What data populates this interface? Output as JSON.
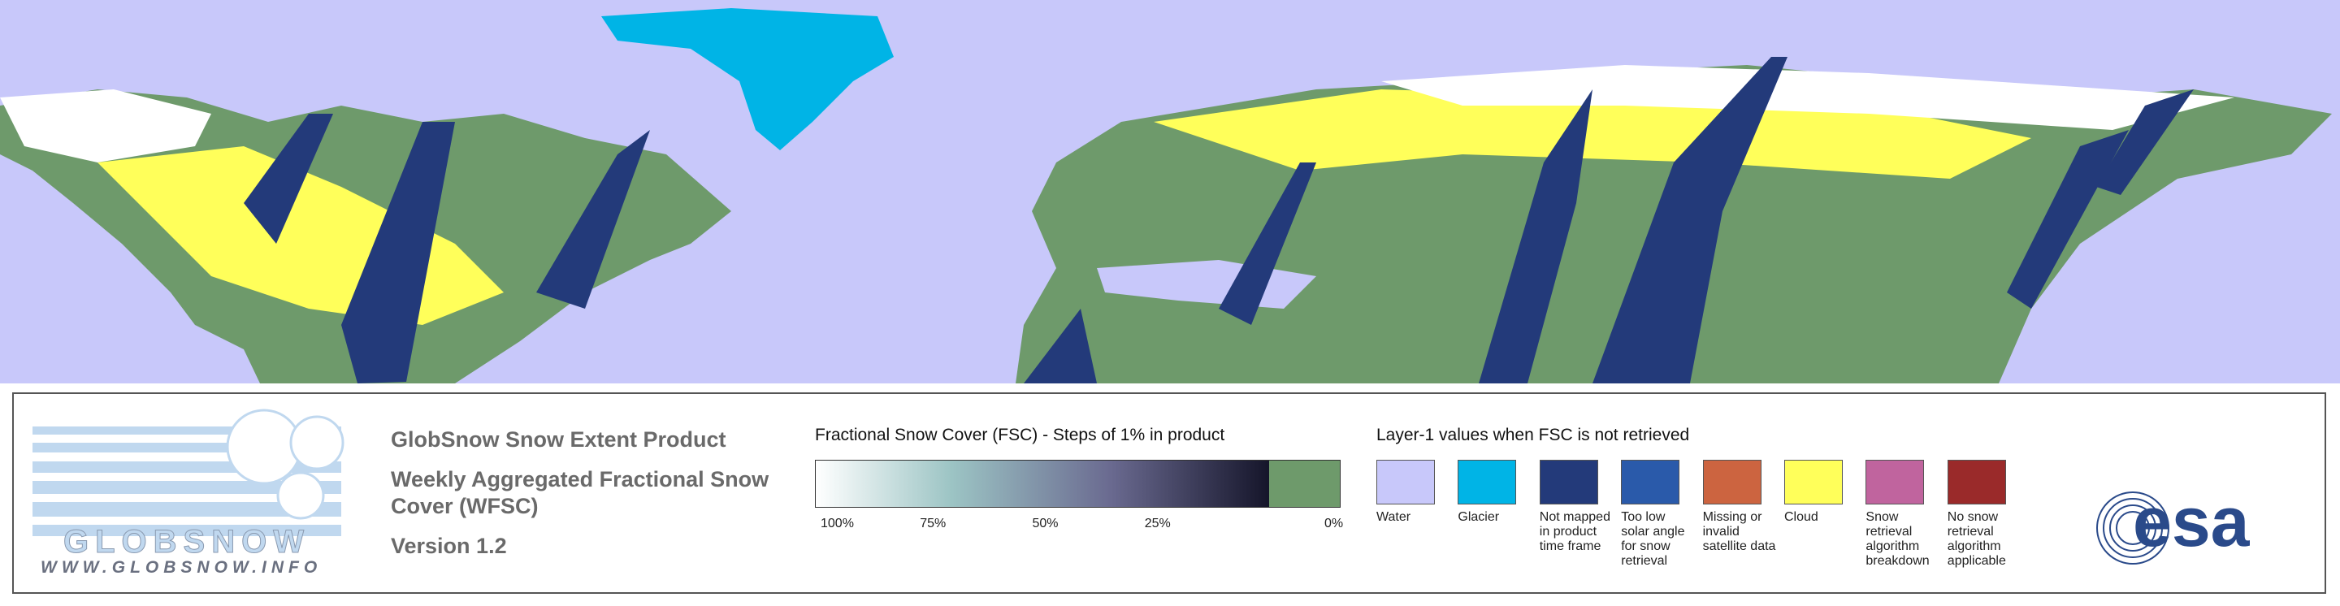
{
  "logo": {
    "name": "GLOBSNOW",
    "url": "WWW.GLOBSNOW.INFO"
  },
  "product": {
    "title": "GlobSnow Snow Extent Product",
    "subtitle": "Weekly Aggregated Fractional Snow Cover (WFSC)",
    "version": "Version 1.2"
  },
  "colorbar": {
    "title": "Fractional Snow Cover (FSC) - Steps of 1% in product",
    "ticks": [
      "100%",
      "75%",
      "50%",
      "25%",
      "0%"
    ],
    "start_color": "#ffffff",
    "end_color": "#15152a",
    "zero_color": "#6e9a6b"
  },
  "layer1": {
    "title": "Layer-1 values when FSC is not retrieved",
    "items": [
      {
        "label": "Water",
        "color": "#c8c8fa"
      },
      {
        "label": "Glacier",
        "color": "#00b4e6"
      },
      {
        "label": "Not mapped in product time frame",
        "color": "#233a7a"
      },
      {
        "label": "Too low solar angle for snow retrieval",
        "color": "#2a5aaa"
      },
      {
        "label": "Missing or invalid satellite data",
        "color": "#cc6440"
      },
      {
        "label": "Cloud",
        "color": "#ffff5a"
      },
      {
        "label": "Snow retrieval algorithm breakdown",
        "color": "#c0649e"
      },
      {
        "label": "No snow retrieval algorithm applicable",
        "color": "#9a2a2a"
      }
    ]
  },
  "esa": {
    "name": "esa"
  }
}
